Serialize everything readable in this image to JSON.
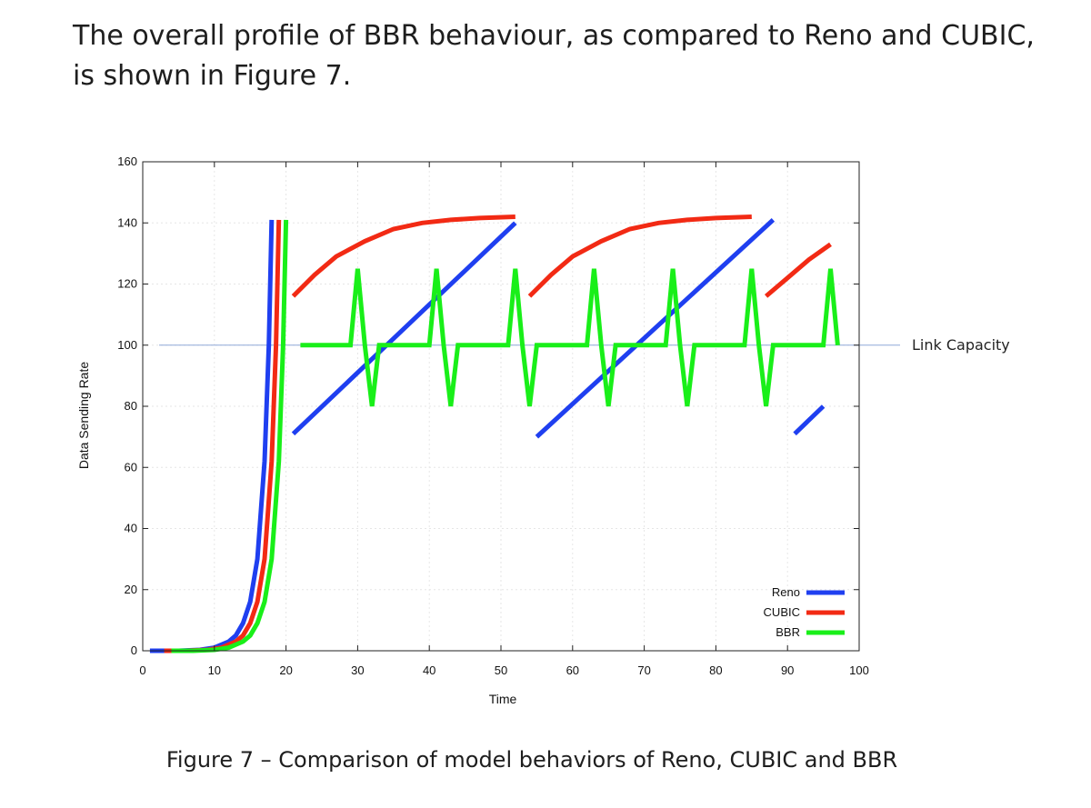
{
  "intro_text": "The overall profile of BBR behaviour, as compared to Reno and CUBIC, is shown in Figure 7.",
  "caption": "Figure 7 – Comparison of model behaviors of Reno, CUBIC and BBR",
  "colors": {
    "reno": "#1f3ff0",
    "cubic": "#f22a14",
    "bbr": "#19ef19",
    "capacity_line": "#8fa8d8"
  },
  "chart_data": {
    "type": "line",
    "xlabel": "Time",
    "ylabel": "Data Sending Rate",
    "xlim": [
      0,
      100
    ],
    "ylim": [
      0,
      160
    ],
    "xticks": [
      0,
      10,
      20,
      30,
      40,
      50,
      60,
      70,
      80,
      90,
      100
    ],
    "yticks": [
      0,
      20,
      40,
      60,
      80,
      100,
      120,
      140,
      160
    ],
    "grid": true,
    "legend_position": "bottom-right",
    "reference_line": {
      "y": 100,
      "label": "Link Capacity"
    },
    "series": [
      {
        "name": "Reno",
        "segments": [
          [
            [
              1,
              0
            ],
            [
              5,
              0
            ],
            [
              8,
              0.3
            ],
            [
              10,
              1
            ],
            [
              12,
              3
            ],
            [
              13,
              5
            ],
            [
              14,
              9
            ],
            [
              15,
              16
            ],
            [
              16,
              30
            ],
            [
              17,
              62
            ],
            [
              17.6,
              100
            ],
            [
              18,
              141
            ]
          ],
          [
            [
              21,
              71
            ],
            [
              52,
              140
            ]
          ],
          [
            [
              55,
              70
            ],
            [
              88,
              141
            ]
          ],
          [
            [
              91,
              71
            ],
            [
              95,
              80
            ]
          ]
        ]
      },
      {
        "name": "CUBIC",
        "segments": [
          [
            [
              3,
              0
            ],
            [
              6,
              0
            ],
            [
              9,
              0.3
            ],
            [
              11,
              1
            ],
            [
              13,
              3
            ],
            [
              14,
              5
            ],
            [
              15,
              9
            ],
            [
              16,
              16
            ],
            [
              17,
              30
            ],
            [
              18,
              62
            ],
            [
              18.6,
              100
            ],
            [
              19,
              141
            ]
          ],
          [
            [
              21,
              116
            ],
            [
              24,
              123
            ],
            [
              27,
              129
            ],
            [
              31,
              134
            ],
            [
              35,
              138
            ],
            [
              39,
              140
            ],
            [
              43,
              141
            ],
            [
              47,
              141.6
            ],
            [
              52,
              142
            ]
          ],
          [
            [
              54,
              116
            ],
            [
              57,
              123
            ],
            [
              60,
              129
            ],
            [
              64,
              134
            ],
            [
              68,
              138
            ],
            [
              72,
              140
            ],
            [
              76,
              141
            ],
            [
              80,
              141.6
            ],
            [
              85,
              142
            ]
          ],
          [
            [
              87,
              116
            ],
            [
              90,
              122
            ],
            [
              93,
              128
            ],
            [
              96,
              133
            ]
          ]
        ]
      },
      {
        "name": "BBR",
        "segments": [
          [
            [
              4,
              0
            ],
            [
              7,
              0
            ],
            [
              10,
              0.3
            ],
            [
              12,
              1
            ],
            [
              14,
              3
            ],
            [
              15,
              5
            ],
            [
              16,
              9
            ],
            [
              17,
              16
            ],
            [
              18,
              30
            ],
            [
              19,
              62
            ],
            [
              19.6,
              100
            ],
            [
              20,
              141
            ]
          ],
          [
            [
              22,
              100
            ],
            [
              29,
              100
            ],
            [
              30,
              125
            ],
            [
              31,
              100
            ],
            [
              32,
              80
            ],
            [
              33,
              100
            ],
            [
              40,
              100
            ],
            [
              41,
              125
            ],
            [
              42,
              100
            ],
            [
              43,
              80
            ],
            [
              44,
              100
            ],
            [
              51,
              100
            ],
            [
              52,
              125
            ],
            [
              53,
              100
            ],
            [
              54,
              80
            ],
            [
              55,
              100
            ],
            [
              62,
              100
            ],
            [
              63,
              125
            ],
            [
              64,
              100
            ],
            [
              65,
              80
            ],
            [
              66,
              100
            ],
            [
              73,
              100
            ],
            [
              74,
              125
            ],
            [
              75,
              100
            ],
            [
              76,
              80
            ],
            [
              77,
              100
            ],
            [
              84,
              100
            ],
            [
              85,
              125
            ],
            [
              86,
              100
            ],
            [
              87,
              80
            ],
            [
              88,
              100
            ],
            [
              95,
              100
            ],
            [
              96,
              125
            ],
            [
              97,
              100
            ]
          ]
        ]
      }
    ]
  }
}
